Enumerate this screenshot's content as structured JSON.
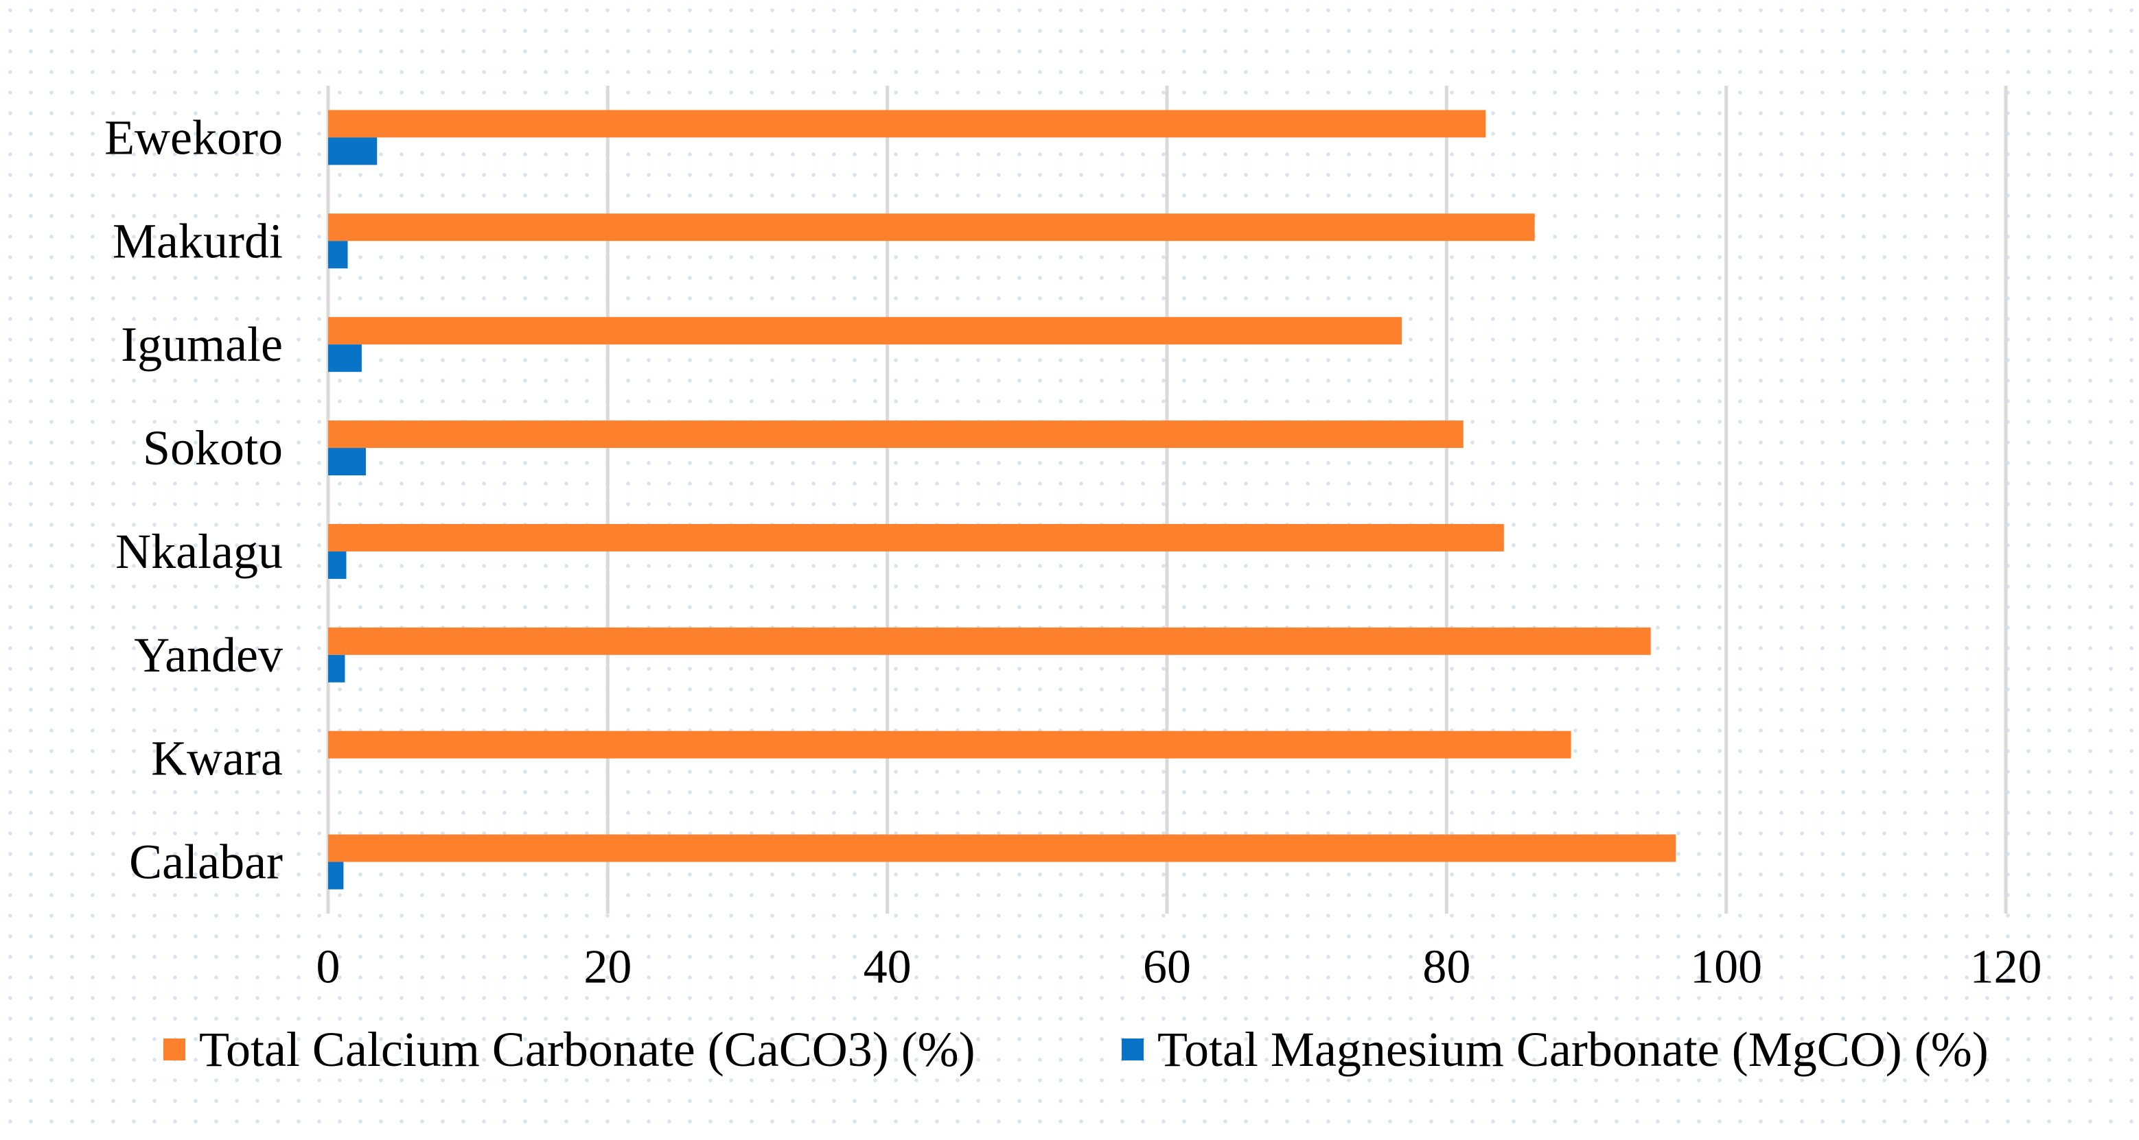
{
  "chart_data": {
    "type": "bar",
    "orientation": "horizontal",
    "categories": [
      "Ewekoro",
      "Makurdi",
      "Igumale",
      "Sokoto",
      "Nkalagu",
      "Yandev",
      "Kwara",
      "Calabar"
    ],
    "series": [
      {
        "name": "Total Calcium Carbonate (CaCO3) (%)",
        "color": "#fd812d",
        "values": [
          82.8,
          86.3,
          76.8,
          81.2,
          84.1,
          94.6,
          88.9,
          96.4
        ]
      },
      {
        "name": "Total Magnesium Carbonate (MgCO) (%)",
        "color": "#0873c7",
        "values": [
          3.5,
          1.4,
          2.4,
          2.7,
          1.3,
          1.2,
          0,
          1.1
        ]
      }
    ],
    "xlim": [
      0,
      120
    ],
    "xticks": [
      "0",
      "20",
      "40",
      "60",
      "80",
      "100",
      "120"
    ],
    "grid": true,
    "legend_position": "bottom",
    "title": "",
    "xlabel": "",
    "ylabel": ""
  }
}
